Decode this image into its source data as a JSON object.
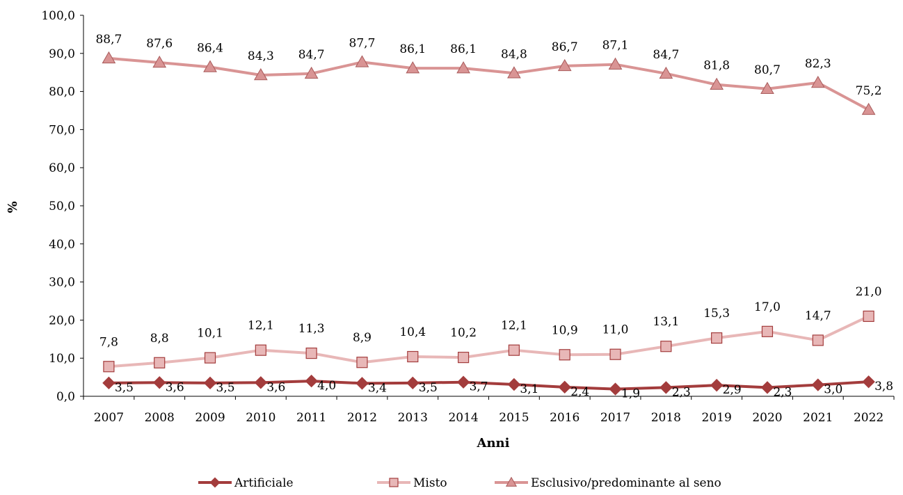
{
  "chart_data": {
    "type": "line",
    "title": "",
    "xlabel": "Anni",
    "ylabel": "%",
    "ylim": [
      0,
      100
    ],
    "y_ticks": [
      "0,0",
      "10,0",
      "20,0",
      "30,0",
      "40,0",
      "50,0",
      "60,0",
      "70,0",
      "80,0",
      "90,0",
      "100,0"
    ],
    "grid": false,
    "legend_position": "bottom",
    "categories": [
      "2007",
      "2008",
      "2009",
      "2010",
      "2011",
      "2012",
      "2013",
      "2014",
      "2015",
      "2016",
      "2017",
      "2018",
      "2019",
      "2020",
      "2021",
      "2022"
    ],
    "series": [
      {
        "name": "Artificiale",
        "marker": "diamond",
        "color": "#a33c3c",
        "values": [
          3.5,
          3.6,
          3.5,
          3.6,
          4.0,
          3.4,
          3.5,
          3.7,
          3.1,
          2.4,
          1.9,
          2.3,
          2.9,
          2.3,
          3.0,
          3.8
        ],
        "labels": [
          "3,5",
          "3,6",
          "3,5",
          "3,6",
          "4,0",
          "3,4",
          "3,5",
          "3,7",
          "3,1",
          "2,4",
          "1,9",
          "2,3",
          "2,9",
          "2,3",
          "3,0",
          "3,8"
        ]
      },
      {
        "name": "Misto",
        "marker": "square",
        "color": "#e8b7b7",
        "values": [
          7.8,
          8.8,
          10.1,
          12.1,
          11.3,
          8.9,
          10.4,
          10.2,
          12.1,
          10.9,
          11.0,
          13.1,
          15.3,
          17.0,
          14.7,
          21.0
        ],
        "labels": [
          "7,8",
          "8,8",
          "10,1",
          "12,1",
          "11,3",
          "8,9",
          "10,4",
          "10,2",
          "12,1",
          "10,9",
          "11,0",
          "13,1",
          "15,3",
          "17,0",
          "14,7",
          "21,0"
        ]
      },
      {
        "name": "Esclusivo/predominante al seno",
        "marker": "triangle",
        "color": "#d99494",
        "values": [
          88.7,
          87.6,
          86.4,
          84.3,
          84.7,
          87.7,
          86.1,
          86.1,
          84.8,
          86.7,
          87.1,
          84.7,
          81.8,
          80.7,
          82.3,
          75.2
        ],
        "labels": [
          "88,7",
          "87,6",
          "86,4",
          "84,3",
          "84,7",
          "87,7",
          "86,1",
          "86,1",
          "84,8",
          "86,7",
          "87,1",
          "84,7",
          "81,8",
          "80,7",
          "82,3",
          "75,2"
        ]
      }
    ]
  }
}
